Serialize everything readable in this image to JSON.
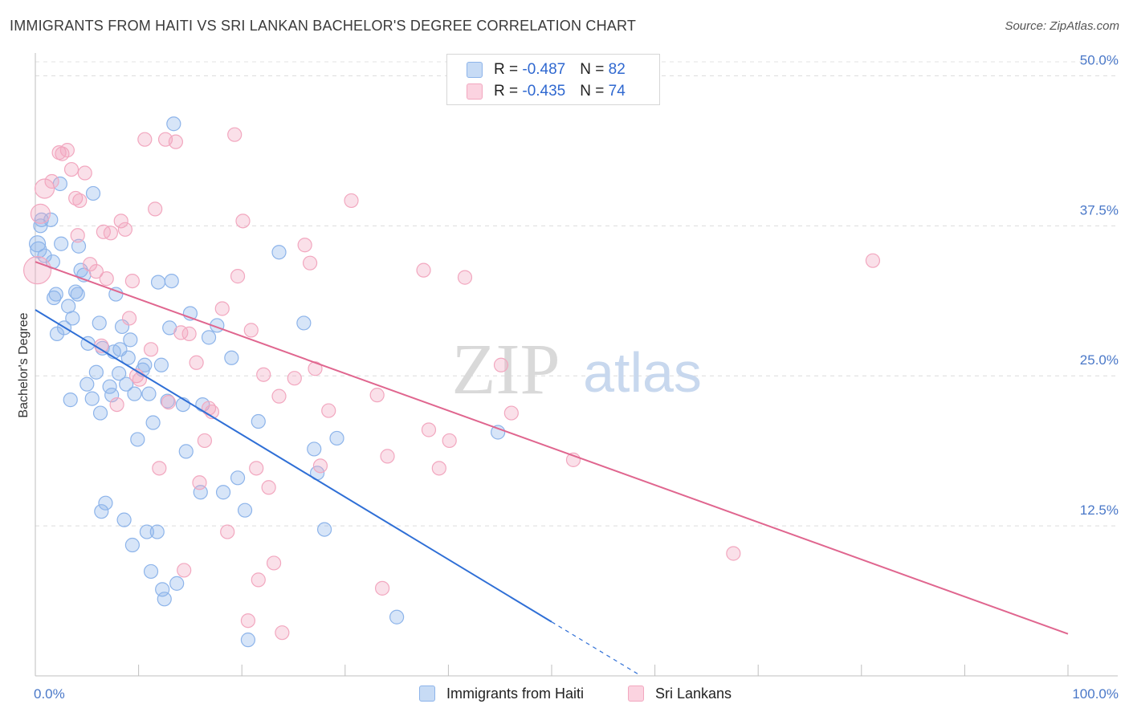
{
  "header": {
    "title": "IMMIGRANTS FROM HAITI VS SRI LANKAN BACHELOR'S DEGREE CORRELATION CHART",
    "source": "Source: ZipAtlas.com"
  },
  "watermark": {
    "part1": "ZIP",
    "part2": "atlas"
  },
  "legend": {
    "rows": [
      {
        "r_label": "R = ",
        "r_value": "-0.487",
        "n_label": "N = ",
        "n_value": "82",
        "color": "#8db4ea"
      },
      {
        "r_label": "R = ",
        "r_value": "-0.435",
        "n_label": "N = ",
        "n_value": "74",
        "color": "#f2a7bf"
      }
    ]
  },
  "bottom_legend": {
    "items": [
      {
        "label": "Immigrants from Haiti",
        "color": "#8db4ea"
      },
      {
        "label": "Sri Lankans",
        "color": "#f2a7bf"
      }
    ]
  },
  "chart_data": {
    "type": "scatter",
    "title": "IMMIGRANTS FROM HAITI VS SRI LANKAN BACHELOR'S DEGREE CORRELATION CHART",
    "xlabel": "",
    "ylabel": "Bachelor's Degree",
    "xlim": [
      0,
      100
    ],
    "ylim": [
      0,
      51.5
    ],
    "x_tick_labels": [
      {
        "value": 0,
        "label": "0.0%"
      },
      {
        "value": 100,
        "label": "100.0%"
      }
    ],
    "y_tick_labels": [
      {
        "value": 12.5,
        "label": "12.5%"
      },
      {
        "value": 25,
        "label": "25.0%"
      },
      {
        "value": 37.5,
        "label": "37.5%"
      },
      {
        "value": 50,
        "label": "50.0%"
      }
    ],
    "grid": "horizontal dashed",
    "legend_position": "top-center",
    "series": [
      {
        "name": "Immigrants from Haiti",
        "color": "#8db4ea",
        "line_color": "#2f6fd6",
        "trend": {
          "x0": 0,
          "y0": 30.5,
          "x1": 50,
          "y1": 4.5,
          "dash_to_x": 58.5
        },
        "points": [
          [
            0.2,
            36.0
          ],
          [
            0.3,
            35.5
          ],
          [
            0.5,
            37.5
          ],
          [
            0.6,
            38.0
          ],
          [
            0.9,
            35.0
          ],
          [
            1.5,
            38.0
          ],
          [
            1.7,
            34.5
          ],
          [
            1.8,
            31.5
          ],
          [
            2.0,
            31.8
          ],
          [
            2.1,
            28.5
          ],
          [
            2.4,
            41.0
          ],
          [
            2.5,
            36.0
          ],
          [
            2.8,
            29.0
          ],
          [
            3.2,
            30.8
          ],
          [
            3.4,
            23.0
          ],
          [
            3.6,
            29.8
          ],
          [
            3.9,
            32.0
          ],
          [
            4.1,
            31.8
          ],
          [
            4.2,
            35.8
          ],
          [
            4.4,
            33.8
          ],
          [
            4.7,
            33.4
          ],
          [
            5.0,
            24.3
          ],
          [
            5.1,
            27.7
          ],
          [
            5.5,
            23.1
          ],
          [
            5.6,
            40.2
          ],
          [
            5.9,
            25.3
          ],
          [
            6.2,
            29.4
          ],
          [
            6.3,
            21.9
          ],
          [
            6.4,
            13.7
          ],
          [
            6.5,
            27.3
          ],
          [
            6.8,
            14.4
          ],
          [
            7.2,
            24.1
          ],
          [
            7.4,
            23.4
          ],
          [
            7.6,
            27.0
          ],
          [
            7.8,
            31.8
          ],
          [
            8.1,
            25.2
          ],
          [
            8.2,
            27.2
          ],
          [
            8.4,
            29.1
          ],
          [
            8.6,
            13.0
          ],
          [
            8.8,
            24.3
          ],
          [
            9.0,
            26.5
          ],
          [
            9.2,
            28.0
          ],
          [
            9.4,
            10.9
          ],
          [
            9.6,
            23.5
          ],
          [
            9.9,
            19.7
          ],
          [
            10.4,
            25.5
          ],
          [
            10.6,
            25.9
          ],
          [
            10.8,
            12.0
          ],
          [
            11.0,
            23.5
          ],
          [
            11.2,
            8.7
          ],
          [
            11.4,
            21.1
          ],
          [
            11.8,
            12.0
          ],
          [
            11.9,
            32.8
          ],
          [
            12.2,
            25.9
          ],
          [
            12.3,
            7.2
          ],
          [
            12.5,
            6.4
          ],
          [
            12.8,
            22.9
          ],
          [
            13.0,
            29.0
          ],
          [
            13.2,
            32.9
          ],
          [
            13.4,
            46.0
          ],
          [
            13.7,
            7.7
          ],
          [
            14.3,
            22.6
          ],
          [
            14.6,
            18.7
          ],
          [
            15.0,
            30.2
          ],
          [
            16.0,
            15.3
          ],
          [
            16.2,
            22.6
          ],
          [
            16.8,
            28.2
          ],
          [
            17.6,
            29.2
          ],
          [
            18.2,
            15.3
          ],
          [
            19.0,
            26.5
          ],
          [
            19.6,
            16.5
          ],
          [
            20.3,
            13.8
          ],
          [
            20.6,
            3.0
          ],
          [
            21.6,
            21.2
          ],
          [
            23.6,
            35.3
          ],
          [
            26.0,
            29.4
          ],
          [
            27.0,
            18.9
          ],
          [
            27.3,
            16.9
          ],
          [
            28.0,
            12.2
          ],
          [
            29.2,
            19.8
          ],
          [
            35.0,
            4.9
          ],
          [
            44.8,
            20.3
          ]
        ]
      },
      {
        "name": "Sri Lankans",
        "color": "#f2a7bf",
        "line_color": "#e0668f",
        "trend": {
          "x0": 0,
          "y0": 34.5,
          "x1": 100,
          "y1": 3.5
        },
        "points": [
          [
            0.2,
            33.8
          ],
          [
            0.5,
            38.5
          ],
          [
            0.9,
            40.6
          ],
          [
            1.6,
            41.2
          ],
          [
            2.3,
            43.6
          ],
          [
            2.6,
            43.5
          ],
          [
            3.1,
            43.8
          ],
          [
            3.5,
            42.2
          ],
          [
            3.9,
            39.8
          ],
          [
            4.1,
            36.7
          ],
          [
            4.3,
            39.6
          ],
          [
            4.8,
            41.9
          ],
          [
            5.3,
            34.3
          ],
          [
            5.9,
            33.7
          ],
          [
            6.4,
            27.5
          ],
          [
            6.6,
            37.0
          ],
          [
            6.9,
            33.1
          ],
          [
            7.3,
            36.9
          ],
          [
            7.9,
            22.6
          ],
          [
            8.3,
            37.9
          ],
          [
            8.7,
            37.2
          ],
          [
            9.1,
            29.8
          ],
          [
            9.4,
            32.9
          ],
          [
            9.8,
            25.0
          ],
          [
            10.1,
            24.7
          ],
          [
            10.6,
            44.7
          ],
          [
            11.2,
            27.2
          ],
          [
            11.6,
            38.9
          ],
          [
            12.0,
            17.3
          ],
          [
            12.6,
            44.7
          ],
          [
            12.9,
            22.8
          ],
          [
            13.6,
            44.5
          ],
          [
            14.1,
            28.6
          ],
          [
            14.4,
            8.8
          ],
          [
            14.9,
            28.5
          ],
          [
            15.6,
            26.1
          ],
          [
            15.9,
            16.1
          ],
          [
            16.4,
            19.6
          ],
          [
            16.8,
            22.3
          ],
          [
            17.1,
            22.0
          ],
          [
            18.1,
            30.6
          ],
          [
            18.6,
            12.0
          ],
          [
            19.3,
            45.1
          ],
          [
            19.6,
            33.3
          ],
          [
            20.1,
            37.9
          ],
          [
            20.6,
            4.6
          ],
          [
            20.9,
            28.8
          ],
          [
            21.4,
            17.3
          ],
          [
            21.6,
            8.0
          ],
          [
            22.1,
            25.1
          ],
          [
            22.6,
            15.7
          ],
          [
            23.1,
            9.4
          ],
          [
            23.6,
            23.3
          ],
          [
            23.9,
            3.6
          ],
          [
            25.1,
            24.8
          ],
          [
            26.1,
            35.9
          ],
          [
            26.6,
            34.4
          ],
          [
            27.6,
            17.5
          ],
          [
            27.1,
            25.6
          ],
          [
            28.4,
            22.1
          ],
          [
            30.6,
            39.6
          ],
          [
            33.1,
            23.4
          ],
          [
            33.6,
            7.3
          ],
          [
            34.1,
            18.3
          ],
          [
            37.6,
            33.8
          ],
          [
            38.1,
            20.5
          ],
          [
            39.1,
            17.3
          ],
          [
            40.1,
            19.6
          ],
          [
            41.6,
            33.2
          ],
          [
            45.1,
            25.9
          ],
          [
            46.1,
            21.9
          ],
          [
            52.1,
            18.0
          ],
          [
            67.6,
            10.2
          ],
          [
            81.1,
            34.6
          ]
        ]
      }
    ]
  }
}
